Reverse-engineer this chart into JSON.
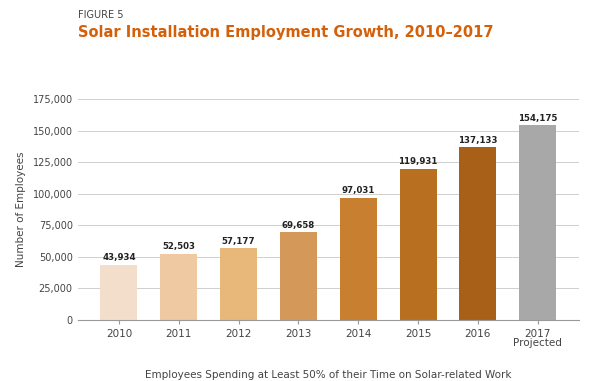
{
  "figure_label": "FIGURE 5",
  "title": "Solar Installation Employment Growth, 2010–2017",
  "title_color": "#D4600A",
  "figure_label_color": "#444444",
  "years": [
    "2010",
    "2011",
    "2012",
    "2013",
    "2014",
    "2015",
    "2016",
    "2017"
  ],
  "year_sub": [
    "",
    "",
    "",
    "",
    "",
    "",
    "",
    "Projected"
  ],
  "values": [
    43934,
    52503,
    57177,
    69658,
    97031,
    119931,
    137133,
    154175
  ],
  "bar_colors": [
    "#F2DECA",
    "#EEC9A2",
    "#E8B87A",
    "#D49858",
    "#C88030",
    "#B87020",
    "#A86018",
    "#A8A8A8"
  ],
  "xlabel": "Employees Spending at Least 50% of their Time on Solar-related Work",
  "ylabel": "Number of Employees",
  "ylim": [
    0,
    175000
  ],
  "yticks": [
    0,
    25000,
    50000,
    75000,
    100000,
    125000,
    150000,
    175000
  ],
  "ytick_labels": [
    "0",
    "25,000",
    "50,000",
    "75,000",
    "100,000",
    "125,000",
    "150,000",
    "175,000"
  ],
  "value_labels": [
    "43,934",
    "52,503",
    "57,177",
    "69,658",
    "97,031",
    "119,931",
    "137,133",
    "154,175"
  ],
  "background_color": "#FFFFFF",
  "grid_color": "#C8C8C8"
}
